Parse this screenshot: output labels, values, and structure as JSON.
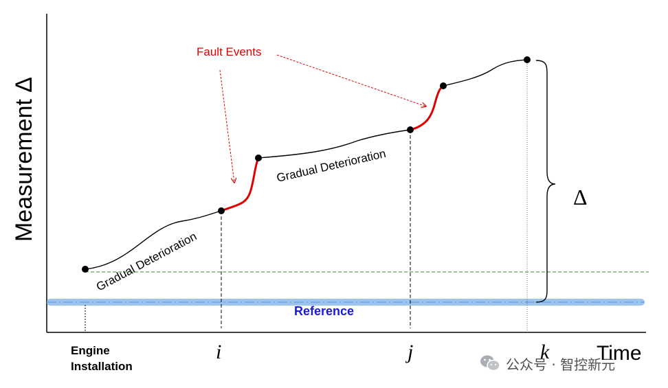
{
  "axes": {
    "y_label": "Measurement Δ",
    "x_label": "Time"
  },
  "x_ticks": {
    "engine_line1": "Engine",
    "engine_line2": "Installation",
    "i": "i",
    "j": "j",
    "k": "k"
  },
  "labels": {
    "fault_events": "Fault Events",
    "gradual_1": "Gradual Deterioration",
    "gradual_2": "Gradual Deterioration",
    "reference": "Reference",
    "delta": "Δ"
  },
  "watermark": {
    "text": "公众号 · 智控新元",
    "icon": "wechat-icon"
  },
  "colors": {
    "fault": "#e00000",
    "reference_text": "#1a1adc",
    "reference_band": "#9cc4ee",
    "baseline_dash": "#2e8b2e",
    "curve": "#000000"
  }
}
